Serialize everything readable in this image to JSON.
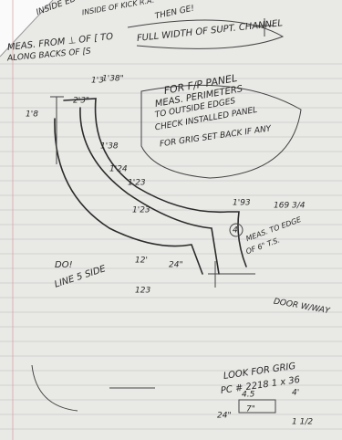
{
  "notes": [
    "INSIDE EDGE",
    "INSIDE OF KICK R.A.",
    "THEN GE!",
    "MEAS. FROM ⊥ OF [ TO",
    "FULL WIDTH OF SUPT. CHANNEL",
    "ALONG BACKS OF [S",
    "FOR F/P PANEL",
    "MEAS. PERIMETERS",
    "TO OUTSIDE EDGES",
    "CHECK INSTALLED PANEL",
    "FOR GRIG SET BACK IF ANY",
    "MEAS. TO EDGE",
    "OF 6\" T.S.",
    "DOOR W/WAY",
    "LINE 5 SIDE",
    "DO!",
    "LOOK FOR GRIG",
    "PC # 2218 1 x 36"
  ],
  "dimensions": [
    "1'38\"",
    "2'3\"",
    "1'8",
    "1'3",
    "1'38",
    "1'24",
    "1'23",
    "1'23",
    "1'93",
    "169 3/4",
    "12'",
    "24\"",
    "123",
    "4",
    "4.5",
    "4'",
    "24\"",
    "7\"",
    "1 1/2"
  ]
}
